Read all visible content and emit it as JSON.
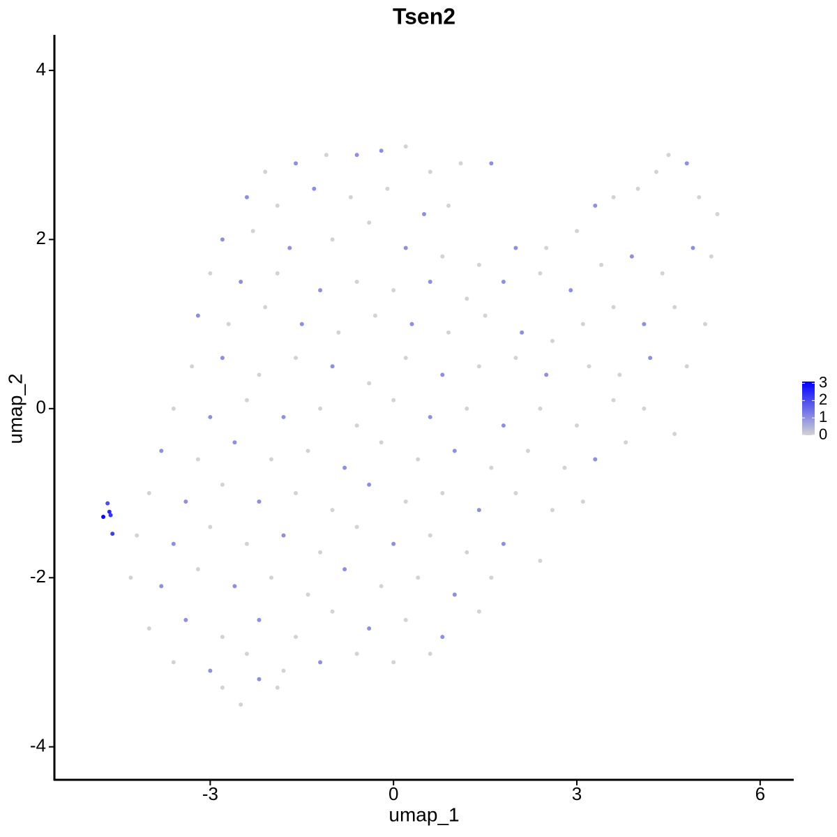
{
  "chart_data": {
    "type": "scatter",
    "title": "Tsen2",
    "x_label": "umap_1",
    "y_label": "umap_2",
    "xlim": [
      -5.55,
      6.55
    ],
    "ylim": [
      -4.39,
      4.42
    ],
    "xticks": [
      -3,
      0,
      3,
      6
    ],
    "yticks": [
      -4,
      -2,
      0,
      2,
      4
    ],
    "low_color": "#d3d3d3",
    "high_color": "#0000ff",
    "color_range": [
      0,
      3.1
    ],
    "colorbar_ticks": [
      0,
      1,
      2,
      3
    ],
    "x": [
      -2.1,
      -1.6,
      -1.1,
      -0.6,
      -0.2,
      0.2,
      0.6,
      1.1,
      1.6,
      -2.4,
      -1.9,
      -1.3,
      -0.7,
      -0.1,
      0.5,
      0.9,
      -2.8,
      -2.3,
      -1.7,
      -1.0,
      -0.4,
      0.2,
      0.8,
      1.4,
      2.0,
      2.5,
      3.0,
      3.3,
      3.6,
      4.0,
      4.3,
      4.5,
      4.8,
      5.0,
      5.3,
      -3.0,
      -2.5,
      -1.9,
      -1.2,
      -0.6,
      0.0,
      0.6,
      1.2,
      1.8,
      2.4,
      2.9,
      3.4,
      3.9,
      4.4,
      4.9,
      5.2,
      -3.2,
      -2.7,
      -2.1,
      -1.5,
      -0.9,
      -0.3,
      0.3,
      0.9,
      1.5,
      2.1,
      2.6,
      3.1,
      3.6,
      4.1,
      4.6,
      5.1,
      -3.3,
      -2.8,
      -2.2,
      -1.6,
      -1.0,
      -0.4,
      0.2,
      0.8,
      1.4,
      2.0,
      2.5,
      3.2,
      3.7,
      4.2,
      4.8,
      -3.6,
      -3.0,
      -2.4,
      -1.8,
      -1.2,
      -0.6,
      0.0,
      0.6,
      1.2,
      1.8,
      2.4,
      3.0,
      3.6,
      4.1,
      4.6,
      -3.8,
      -3.2,
      -2.6,
      -2.0,
      -1.4,
      -0.8,
      -0.2,
      0.4,
      1.0,
      1.6,
      2.2,
      2.8,
      3.3,
      3.8,
      -4.0,
      -3.4,
      -2.8,
      -2.2,
      -1.6,
      -1.0,
      -0.4,
      0.2,
      0.8,
      1.4,
      2.0,
      2.6,
      3.1,
      -4.2,
      -3.6,
      -3.0,
      -2.4,
      -1.8,
      -1.2,
      -0.6,
      0.0,
      0.6,
      1.2,
      1.8,
      2.4,
      -4.3,
      -3.8,
      -3.2,
      -2.6,
      -2.0,
      -1.4,
      -0.8,
      -0.2,
      0.4,
      1.0,
      1.6,
      -4.0,
      -3.4,
      -2.8,
      -2.2,
      -1.6,
      -1.0,
      -0.4,
      0.2,
      0.8,
      1.4,
      -3.6,
      -3.0,
      -2.4,
      -1.8,
      -1.2,
      -0.6,
      0.0,
      0.6,
      -2.8,
      -2.2,
      -1.9,
      -2.5,
      -4.75,
      -4.65,
      -4.68,
      -4.6,
      -4.63
    ],
    "y": [
      2.8,
      2.9,
      3.0,
      3.0,
      3.05,
      3.1,
      2.8,
      2.9,
      2.9,
      2.5,
      2.4,
      2.6,
      2.5,
      2.6,
      2.3,
      2.4,
      2.0,
      2.1,
      1.9,
      2.0,
      2.2,
      1.9,
      1.8,
      1.7,
      1.9,
      1.9,
      2.1,
      2.4,
      2.5,
      2.6,
      2.8,
      3.0,
      2.9,
      2.5,
      2.3,
      1.6,
      1.5,
      1.6,
      1.4,
      1.5,
      1.4,
      1.5,
      1.3,
      1.5,
      1.6,
      1.4,
      1.7,
      1.8,
      1.6,
      1.9,
      1.8,
      1.1,
      1.0,
      1.2,
      1.0,
      0.9,
      1.1,
      1.0,
      0.9,
      1.1,
      0.9,
      0.8,
      1.0,
      1.2,
      1.0,
      1.2,
      1.0,
      0.5,
      0.6,
      0.4,
      0.6,
      0.5,
      0.3,
      0.6,
      0.4,
      0.5,
      0.6,
      0.4,
      0.5,
      0.4,
      0.6,
      0.5,
      0.0,
      -0.1,
      0.1,
      -0.1,
      0.0,
      -0.2,
      0.1,
      -0.1,
      0.0,
      -0.2,
      0.0,
      -0.2,
      0.1,
      0.0,
      -0.3,
      -0.5,
      -0.6,
      -0.4,
      -0.6,
      -0.5,
      -0.7,
      -0.4,
      -0.6,
      -0.5,
      -0.7,
      -0.5,
      -0.7,
      -0.6,
      -0.4,
      -1.0,
      -1.1,
      -0.9,
      -1.1,
      -1.0,
      -1.2,
      -0.9,
      -1.1,
      -1.0,
      -1.2,
      -1.0,
      -1.2,
      -1.1,
      -1.5,
      -1.6,
      -1.4,
      -1.6,
      -1.5,
      -1.7,
      -1.4,
      -1.6,
      -1.5,
      -1.7,
      -1.6,
      -1.8,
      -2.0,
      -2.1,
      -1.9,
      -2.1,
      -2.0,
      -2.2,
      -1.9,
      -2.1,
      -2.0,
      -2.2,
      -2.0,
      -2.6,
      -2.5,
      -2.7,
      -2.5,
      -2.7,
      -2.4,
      -2.6,
      -2.5,
      -2.7,
      -2.4,
      -3.0,
      -3.1,
      -2.9,
      -3.1,
      -3.0,
      -2.9,
      -3.0,
      -2.9,
      -3.3,
      -3.2,
      -3.3,
      -3.5,
      -1.28,
      -1.22,
      -1.12,
      -1.48,
      -1.26
    ],
    "values": [
      0,
      1,
      0,
      1,
      1,
      0,
      0,
      0,
      1,
      1,
      0,
      1,
      0,
      0,
      1,
      0,
      1,
      0,
      1,
      0,
      0,
      1,
      0,
      0,
      1,
      0,
      0,
      1,
      0,
      0,
      0,
      0,
      1,
      0,
      0,
      0,
      1,
      0,
      1,
      0,
      0,
      1,
      0,
      1,
      0,
      1,
      0,
      1,
      0,
      1,
      0,
      1,
      0,
      0,
      1,
      0,
      0,
      1,
      0,
      0,
      1,
      0,
      0,
      0,
      1,
      0,
      0,
      0,
      1,
      0,
      0,
      1,
      0,
      0,
      1,
      0,
      0,
      1,
      0,
      0,
      1,
      0,
      0,
      1,
      0,
      1,
      0,
      0,
      0,
      1,
      0,
      1,
      0,
      0,
      0,
      0,
      0,
      1,
      0,
      1,
      0,
      0,
      1,
      0,
      0,
      1,
      0,
      0,
      0,
      1,
      0,
      0,
      1,
      0,
      1,
      0,
      0,
      1,
      0,
      0,
      1,
      0,
      0,
      0,
      0,
      1,
      0,
      0,
      1,
      0,
      0,
      1,
      0,
      0,
      1,
      0,
      0,
      1,
      0,
      1,
      0,
      0,
      1,
      0,
      0,
      1,
      0,
      0,
      1,
      0,
      1,
      0,
      0,
      1,
      0,
      1,
      0,
      0,
      1,
      0,
      0,
      1,
      0,
      0,
      0,
      0,
      1,
      0,
      0,
      3,
      2.5,
      2,
      2.2,
      2.3
    ]
  }
}
